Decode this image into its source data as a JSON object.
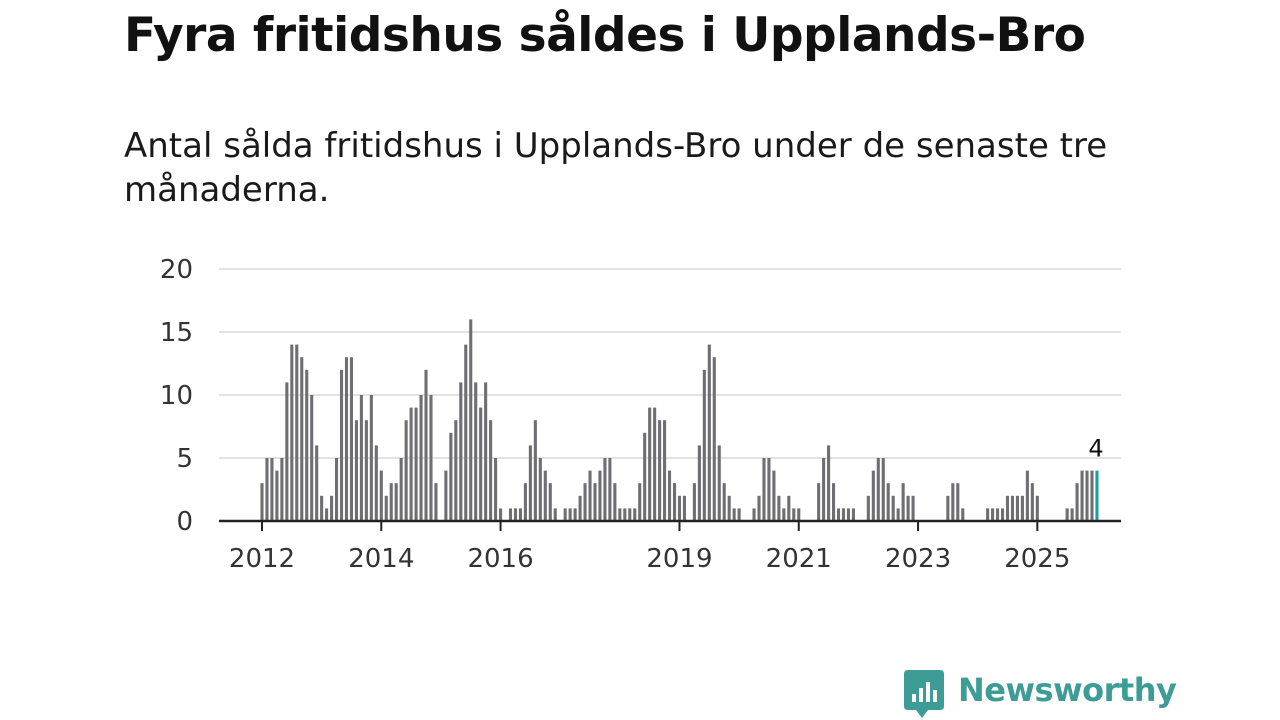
{
  "header": {
    "title": "Fyra fritidshus såldes i Upplands-Bro",
    "subtitle": "Antal sålda fritidshus i Upplands-Bro under de senaste tre månaderna."
  },
  "brand": {
    "name": "Newsworthy",
    "icon": "newsworthy-logo-icon",
    "color": "#3d9c96"
  },
  "chart_data": {
    "type": "bar",
    "title": "Fyra fritidshus såldes i Upplands-Bro",
    "subtitle": "Antal sålda fritidshus i Upplands-Bro under de senaste tre månaderna.",
    "xlabel": "",
    "ylabel": "",
    "ylim": [
      0,
      20
    ],
    "yticks": [
      0,
      5,
      10,
      15,
      20
    ],
    "xticks": [
      "2012",
      "2014",
      "2016",
      "2019",
      "2021",
      "2023",
      "2025"
    ],
    "grid": true,
    "bar_color": "#6e6e73",
    "highlight_color": "#1a9e9e",
    "highlight_label": "4",
    "series": [
      {
        "name": "Antal sålda fritidshus",
        "values": [
          3,
          5,
          5,
          4,
          5,
          11,
          14,
          14,
          13,
          12,
          10,
          6,
          2,
          1,
          2,
          5,
          12,
          13,
          13,
          8,
          10,
          8,
          10,
          6,
          4,
          2,
          3,
          3,
          5,
          8,
          9,
          9,
          10,
          12,
          10,
          3,
          0,
          4,
          7,
          8,
          11,
          14,
          16,
          11,
          9,
          11,
          8,
          5,
          1,
          0,
          1,
          1,
          1,
          3,
          6,
          8,
          5,
          4,
          3,
          1,
          0,
          1,
          1,
          1,
          2,
          3,
          4,
          3,
          4,
          5,
          5,
          3,
          1,
          1,
          1,
          1,
          3,
          7,
          9,
          9,
          8,
          8,
          4,
          3,
          2,
          2,
          0,
          3,
          6,
          12,
          14,
          13,
          6,
          3,
          2,
          1,
          1,
          0,
          0,
          1,
          2,
          5,
          5,
          4,
          2,
          1,
          2,
          1,
          1,
          0,
          0,
          0,
          3,
          5,
          6,
          3,
          1,
          1,
          1,
          1,
          0,
          0,
          2,
          4,
          5,
          5,
          3,
          2,
          1,
          3,
          2,
          2,
          0,
          0,
          0,
          0,
          0,
          0,
          2,
          3,
          3,
          1,
          0,
          0,
          0,
          0,
          1,
          1,
          1,
          1,
          2,
          2,
          2,
          2,
          4,
          3,
          2,
          0,
          0,
          0,
          0,
          0,
          1,
          1,
          3,
          4,
          4,
          4,
          4
        ]
      }
    ]
  }
}
